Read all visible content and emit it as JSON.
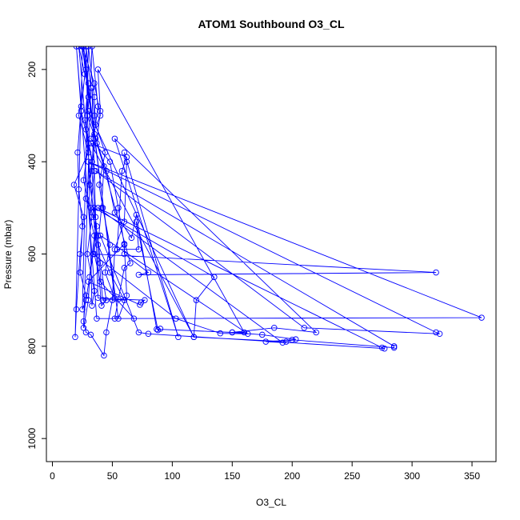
{
  "chart_data": {
    "type": "line",
    "title": "ATOM1 Southbound O3_CL",
    "xlabel": "O3_CL",
    "ylabel": "Pressure (mbar)",
    "xlim": [
      -5,
      370
    ],
    "ylim": [
      1050,
      150
    ],
    "y_reversed": true,
    "x_ticks": [
      0,
      50,
      100,
      150,
      200,
      250,
      300,
      350
    ],
    "y_ticks": [
      200,
      400,
      600,
      800,
      1000
    ],
    "grid": false,
    "legend": "none",
    "series_color": "#0000ff",
    "marker": "open-circle",
    "series": [
      {
        "values": [
          [
            25,
            150
          ],
          [
            28,
            200
          ],
          [
            22,
            300
          ],
          [
            30,
            380
          ],
          [
            18,
            450
          ],
          [
            26,
            520
          ],
          [
            23,
            600
          ],
          [
            20,
            720
          ],
          [
            19,
            780
          ],
          [
            25,
            150
          ],
          [
            35,
            230
          ],
          [
            40,
            300
          ],
          [
            32,
            350
          ],
          [
            48,
            400
          ],
          [
            55,
            500
          ],
          [
            60,
            580
          ],
          [
            62,
            690
          ],
          [
            55,
            740
          ],
          [
            25,
            150
          ],
          [
            30,
            260
          ],
          [
            28,
            330
          ],
          [
            35,
            420
          ],
          [
            32,
            500
          ],
          [
            38,
            560
          ],
          [
            40,
            620
          ],
          [
            45,
            700
          ],
          [
            41,
            712
          ],
          [
            22,
            150
          ],
          [
            27,
            210
          ],
          [
            24,
            290
          ],
          [
            30,
            360
          ],
          [
            26,
            440
          ],
          [
            33,
            520
          ],
          [
            29,
            600
          ],
          [
            35,
            680
          ],
          [
            33,
            712
          ],
          [
            28,
            150
          ],
          [
            32,
            240
          ],
          [
            29,
            300
          ],
          [
            36,
            350
          ],
          [
            31,
            450
          ],
          [
            37,
            540
          ],
          [
            34,
            600
          ],
          [
            28,
            700
          ],
          [
            25,
            720
          ],
          [
            30,
            150
          ],
          [
            35,
            260
          ],
          [
            36,
            320
          ],
          [
            44,
            380
          ],
          [
            39,
            450
          ],
          [
            42,
            500
          ],
          [
            48,
            580
          ],
          [
            44,
            640
          ],
          [
            52,
            696
          ],
          [
            26,
            150
          ],
          [
            30,
            230
          ],
          [
            27,
            310
          ],
          [
            33,
            400
          ],
          [
            28,
            480
          ],
          [
            35,
            560
          ],
          [
            31,
            650
          ],
          [
            30,
            700
          ],
          [
            26,
            760
          ],
          [
            33,
            150
          ],
          [
            38,
            280
          ],
          [
            35,
            340
          ],
          [
            45,
            420
          ],
          [
            52,
            510
          ],
          [
            66,
            565
          ],
          [
            70,
            515
          ],
          [
            87,
            763
          ],
          [
            150,
            770
          ],
          [
            160,
            770
          ],
          [
            38,
            200
          ],
          [
            40,
            290
          ],
          [
            37,
            360
          ],
          [
            43,
            410
          ],
          [
            41,
            500
          ],
          [
            38,
            580
          ],
          [
            48,
            640
          ],
          [
            60,
            700
          ],
          [
            38,
            695
          ],
          [
            33,
            240
          ],
          [
            35,
            300
          ],
          [
            33,
            420
          ],
          [
            36,
            520
          ],
          [
            35,
            600
          ],
          [
            40,
            660
          ],
          [
            68,
            740
          ],
          [
            37,
            740
          ],
          [
            20,
            150
          ],
          [
            24,
            280
          ],
          [
            21,
            380
          ],
          [
            22,
            460
          ],
          [
            25,
            540
          ],
          [
            23,
            640
          ],
          [
            28,
            690
          ],
          [
            26,
            746
          ],
          [
            28,
            770
          ],
          [
            32,
            775
          ],
          [
            43,
            820
          ],
          [
            45,
            770
          ],
          [
            50,
            700
          ],
          [
            52,
            590
          ],
          [
            60,
            530
          ],
          [
            62,
            400
          ],
          [
            60,
            380
          ],
          [
            105,
            780
          ],
          [
            52,
            350
          ],
          [
            220,
            770
          ],
          [
            185,
            760
          ],
          [
            150,
            770
          ],
          [
            175,
            775
          ],
          [
            203,
            785
          ],
          [
            195,
            790
          ],
          [
            118,
            780
          ],
          [
            30,
            290
          ],
          [
            65,
            620
          ],
          [
            60,
            630
          ],
          [
            52,
            740
          ],
          [
            358,
            738
          ],
          [
            30,
            400
          ],
          [
            320,
            770
          ],
          [
            323,
            773
          ],
          [
            210,
            760
          ],
          [
            36,
            420
          ],
          [
            285,
            800
          ],
          [
            285,
            803
          ],
          [
            200,
            786
          ],
          [
            178,
            790
          ],
          [
            192,
            792
          ],
          [
            38,
            500
          ],
          [
            275,
            803
          ],
          [
            277,
            805
          ],
          [
            80,
            773
          ],
          [
            72,
            770
          ],
          [
            40,
            560
          ],
          [
            163,
            773
          ],
          [
            140,
            772
          ],
          [
            103,
            740
          ],
          [
            34,
            600
          ],
          [
            320,
            640
          ],
          [
            72,
            645
          ],
          [
            80,
            640
          ],
          [
            60,
            600
          ],
          [
            60,
            578
          ],
          [
            30,
            660
          ],
          [
            73,
            710
          ],
          [
            74,
            705
          ],
          [
            77,
            700
          ],
          [
            55,
            698
          ],
          [
            42,
            700
          ],
          [
            35,
            500
          ],
          [
            135,
            650
          ],
          [
            120,
            700
          ],
          [
            118,
            780
          ],
          [
            32,
            360
          ],
          [
            62,
            390
          ],
          [
            58,
            420
          ],
          [
            54,
            590
          ],
          [
            72,
            590
          ],
          [
            70,
            530
          ],
          [
            88,
            765
          ],
          [
            90,
            762
          ]
        ]
      }
    ]
  }
}
